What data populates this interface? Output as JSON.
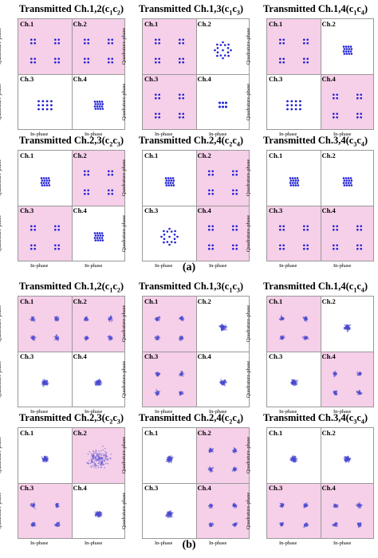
{
  "figure": {
    "caption_a": "(a)",
    "caption_b": "(b)",
    "axis_y": "Quadrature-phase",
    "axis_x": "In-phase",
    "channel_labels": [
      "Ch.1",
      "Ch.2",
      "Ch.3",
      "Ch.4"
    ],
    "highlight_color": "#f6cfe8",
    "point_color": "#1f1fd6",
    "noisy_point_color": "#4a4ad0"
  },
  "rows": [
    {
      "section": "a",
      "panels": [
        {
          "title_main": "Transmitted Ch.1,2(c",
          "s1": "1",
          "mid": "c",
          "s2": "2",
          "pink": [
            1,
            1,
            0,
            0
          ],
          "types": [
            "q4",
            "q4",
            "g12",
            "dense"
          ]
        },
        {
          "title_main": "Transmitted Ch.1,3(c",
          "s1": "1",
          "mid": "c",
          "s2": "3",
          "pink": [
            1,
            0,
            1,
            0
          ],
          "types": [
            "q4",
            "star",
            "q4",
            "g6"
          ]
        },
        {
          "title_main": "Transmitted Ch.1,4(c",
          "s1": "1",
          "mid": "c",
          "s2": "4",
          "pink": [
            1,
            0,
            0,
            1
          ],
          "types": [
            "q4",
            "dense",
            "g12",
            "q4"
          ]
        }
      ]
    },
    {
      "section": "a",
      "panels": [
        {
          "title_main": "Transmitted Ch.2,3(c",
          "s1": "2",
          "mid": "c",
          "s2": "3",
          "pink": [
            0,
            1,
            1,
            0
          ],
          "types": [
            "dense",
            "q4",
            "q4",
            "dense"
          ]
        },
        {
          "title_main": "Transmitted Ch.2,4(c",
          "s1": "2",
          "mid": "c",
          "s2": "4",
          "pink": [
            0,
            1,
            0,
            1
          ],
          "types": [
            "dense",
            "q4",
            "star",
            "q4"
          ]
        },
        {
          "title_main": "Transmitted Ch.3,4(c",
          "s1": "3",
          "mid": "c",
          "s2": "4",
          "pink": [
            0,
            0,
            1,
            1
          ],
          "types": [
            "dense",
            "dense",
            "q4",
            "q4"
          ]
        }
      ]
    },
    {
      "section": "b",
      "panels": [
        {
          "title_main": "Transmitted Ch.1,2(c",
          "s1": "1",
          "mid": "c",
          "s2": "2",
          "pink": [
            1,
            1,
            0,
            0
          ],
          "types": [
            "nq4",
            "nq4",
            "nblob",
            "nblob"
          ]
        },
        {
          "title_main": "Transmitted Ch.1,3(c",
          "s1": "1",
          "mid": "c",
          "s2": "3",
          "pink": [
            1,
            0,
            1,
            0
          ],
          "types": [
            "nq4",
            "nblob",
            "nq4",
            "nblob"
          ]
        },
        {
          "title_main": "Transmitted Ch.1,4(c",
          "s1": "1",
          "mid": "c",
          "s2": "4",
          "pink": [
            1,
            0,
            0,
            1
          ],
          "types": [
            "nq4",
            "nblob",
            "nblob",
            "nq4"
          ]
        }
      ]
    },
    {
      "section": "b",
      "panels": [
        {
          "title_main": "Transmitted Ch.2,3(c",
          "s1": "2",
          "mid": "c",
          "s2": "3",
          "pink": [
            0,
            1,
            1,
            0
          ],
          "types": [
            "nblob",
            "nwide",
            "nq4",
            "nblob"
          ]
        },
        {
          "title_main": "Transmitted Ch.2,4(c",
          "s1": "2",
          "mid": "c",
          "s2": "4",
          "pink": [
            0,
            1,
            0,
            1
          ],
          "types": [
            "nblob",
            "nq4",
            "nblob",
            "nq4"
          ]
        },
        {
          "title_main": "Transmitted Ch.3,4(c",
          "s1": "3",
          "mid": "c",
          "s2": "4",
          "pink": [
            0,
            0,
            1,
            1
          ],
          "types": [
            "nblob",
            "nblob",
            "nq4",
            "nq4"
          ]
        }
      ]
    }
  ]
}
